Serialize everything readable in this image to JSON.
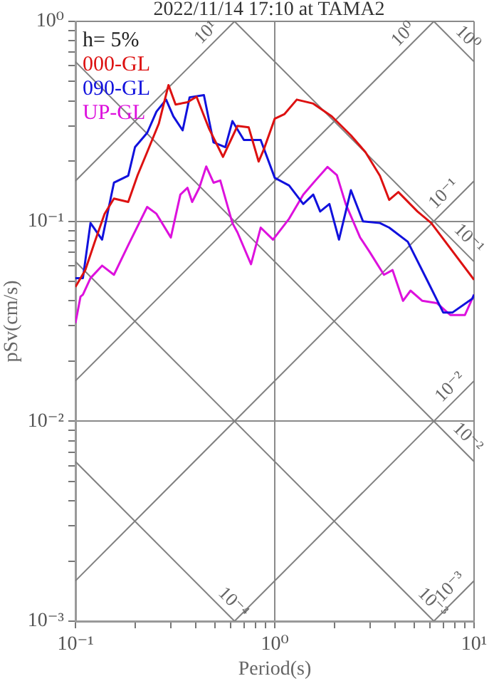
{
  "chart_data": {
    "type": "line",
    "title": "2022/11/14 17:10 at TAMA2",
    "xlabel": "Period(s)",
    "ylabel": "pSv(cm/s)",
    "legend_title": "h= 5%",
    "legend": "top left",
    "log": "xy",
    "grid": true,
    "xlim": [
      0.1,
      10
    ],
    "ylim": [
      0.001,
      1
    ],
    "xticks": [
      {
        "value": 0.1,
        "label": "10⁻¹"
      },
      {
        "value": 0.2,
        "label": null
      },
      {
        "value": 0.3,
        "label": null
      },
      {
        "value": 0.4,
        "label": null
      },
      {
        "value": 0.5,
        "label": null
      },
      {
        "value": 0.6,
        "label": null
      },
      {
        "value": 0.7,
        "label": null
      },
      {
        "value": 0.8,
        "label": null
      },
      {
        "value": 0.9,
        "label": null
      },
      {
        "value": 1,
        "label": "10⁰"
      },
      {
        "value": 2,
        "label": null
      },
      {
        "value": 3,
        "label": null
      },
      {
        "value": 4,
        "label": null
      },
      {
        "value": 5,
        "label": null
      },
      {
        "value": 6,
        "label": null
      },
      {
        "value": 7,
        "label": null
      },
      {
        "value": 8,
        "label": null
      },
      {
        "value": 9,
        "label": null
      },
      {
        "value": 10,
        "label": "10¹"
      }
    ],
    "yticks": [
      {
        "value": 0.001,
        "label": "10⁻³"
      },
      {
        "value": 0.002,
        "label": null
      },
      {
        "value": 0.003,
        "label": null
      },
      {
        "value": 0.004,
        "label": null
      },
      {
        "value": 0.005,
        "label": null
      },
      {
        "value": 0.006,
        "label": null
      },
      {
        "value": 0.007,
        "label": null
      },
      {
        "value": 0.008,
        "label": null
      },
      {
        "value": 0.009,
        "label": null
      },
      {
        "value": 0.01,
        "label": "10⁻²"
      },
      {
        "value": 0.02,
        "label": null
      },
      {
        "value": 0.03,
        "label": null
      },
      {
        "value": 0.04,
        "label": null
      },
      {
        "value": 0.05,
        "label": null
      },
      {
        "value": 0.06,
        "label": null
      },
      {
        "value": 0.07,
        "label": null
      },
      {
        "value": 0.08,
        "label": null
      },
      {
        "value": 0.09,
        "label": null
      },
      {
        "value": 0.1,
        "label": "10⁻¹"
      },
      {
        "value": 0.2,
        "label": null
      },
      {
        "value": 0.3,
        "label": null
      },
      {
        "value": 0.4,
        "label": null
      },
      {
        "value": 0.5,
        "label": null
      },
      {
        "value": 0.6,
        "label": null
      },
      {
        "value": 0.7,
        "label": null
      },
      {
        "value": 0.8,
        "label": null
      },
      {
        "value": 0.9,
        "label": null
      },
      {
        "value": 1,
        "label": "10⁰"
      }
    ],
    "series": [
      {
        "name": "000-GL",
        "type": "line",
        "color": "#dd1111",
        "x": [
          0.1,
          0.112,
          0.125,
          0.14,
          0.156,
          0.184,
          0.205,
          0.229,
          0.262,
          0.293,
          0.318,
          0.365,
          0.405,
          0.467,
          0.55,
          0.65,
          0.74,
          0.83,
          0.88,
          1.0,
          1.12,
          1.29,
          1.56,
          1.93,
          2.41,
          2.85,
          3.37,
          3.75,
          4.17,
          5.2,
          6.1,
          10
        ],
        "values": [
          0.047,
          0.057,
          0.079,
          0.109,
          0.13,
          0.125,
          0.17,
          0.222,
          0.308,
          0.48,
          0.384,
          0.394,
          0.42,
          0.292,
          0.21,
          0.3,
          0.295,
          0.199,
          0.228,
          0.326,
          0.344,
          0.406,
          0.388,
          0.335,
          0.269,
          0.222,
          0.169,
          0.128,
          0.14,
          0.112,
          0.098,
          0.051
        ]
      },
      {
        "name": "090-GL",
        "type": "line",
        "color": "#1111dd",
        "x": [
          0.1,
          0.109,
          0.119,
          0.136,
          0.156,
          0.184,
          0.199,
          0.229,
          0.255,
          0.285,
          0.31,
          0.345,
          0.374,
          0.441,
          0.493,
          0.565,
          0.613,
          0.7,
          0.85,
          1.0,
          1.18,
          1.39,
          1.56,
          1.69,
          1.88,
          2.1,
          2.41,
          2.77,
          3.37,
          3.75,
          4.65,
          5.8,
          7.0,
          7.8,
          9.8,
          10
        ],
        "values": [
          0.052,
          0.052,
          0.098,
          0.081,
          0.156,
          0.169,
          0.235,
          0.277,
          0.354,
          0.406,
          0.335,
          0.285,
          0.417,
          0.428,
          0.248,
          0.235,
          0.317,
          0.255,
          0.255,
          0.165,
          0.151,
          0.122,
          0.136,
          0.112,
          0.122,
          0.081,
          0.143,
          0.1,
          0.098,
          0.093,
          0.079,
          0.051,
          0.035,
          0.035,
          0.041,
          0.043
        ]
      },
      {
        "name": "UP-GL",
        "type": "line",
        "color": "#dd11dd",
        "x": [
          0.1,
          0.106,
          0.109,
          0.119,
          0.136,
          0.156,
          0.184,
          0.229,
          0.255,
          0.301,
          0.336,
          0.365,
          0.385,
          0.418,
          0.453,
          0.493,
          0.533,
          0.613,
          0.65,
          0.76,
          0.85,
          0.98,
          1.18,
          1.39,
          1.6,
          1.84,
          2.05,
          2.27,
          2.68,
          3.0,
          3.53,
          3.9,
          4.4,
          4.8,
          5.5,
          6.5,
          7.6,
          9.0,
          10
        ],
        "values": [
          0.031,
          0.042,
          0.043,
          0.052,
          0.06,
          0.054,
          0.076,
          0.118,
          0.109,
          0.083,
          0.136,
          0.147,
          0.125,
          0.147,
          0.188,
          0.156,
          0.16,
          0.098,
          0.088,
          0.061,
          0.093,
          0.081,
          0.103,
          0.136,
          0.16,
          0.187,
          0.17,
          0.122,
          0.083,
          0.07,
          0.054,
          0.057,
          0.04,
          0.045,
          0.04,
          0.039,
          0.034,
          0.034,
          0.043
        ]
      },
      {
        "type": "line",
        "color": "#808080",
        "x": [
          0.1,
          0.6283
        ],
        "values": [
          0.1592,
          1
        ]
      },
      {
        "type": "line",
        "color": "#808080",
        "x": [
          0.1,
          6.283
        ],
        "values": [
          0.01592,
          1
        ]
      },
      {
        "type": "line",
        "color": "#808080",
        "x": [
          0.1,
          10
        ],
        "values": [
          0.001592,
          0.1592
        ]
      },
      {
        "type": "line",
        "color": "#808080",
        "x": [
          0.6283,
          10
        ],
        "values": [
          0.001,
          0.01592
        ]
      },
      {
        "type": "line",
        "color": "#808080",
        "x": [
          6.283,
          10
        ],
        "values": [
          0.001,
          0.001592
        ]
      },
      {
        "type": "line",
        "color": "#808080",
        "x": [
          6.283,
          10
        ],
        "values": [
          1,
          0.6283
        ]
      },
      {
        "type": "line",
        "color": "#808080",
        "x": [
          0.6283,
          10
        ],
        "values": [
          1,
          0.06283
        ]
      },
      {
        "type": "line",
        "color": "#808080",
        "x": [
          0.1,
          10
        ],
        "values": [
          0.6283,
          0.006283
        ]
      },
      {
        "type": "line",
        "color": "#808080",
        "x": [
          0.1,
          6.283
        ],
        "values": [
          0.06283,
          0.001
        ]
      },
      {
        "type": "line",
        "color": "#808080",
        "x": [
          0.1,
          0.6283
        ],
        "values": [
          0.006283,
          0.001
        ]
      }
    ],
    "annotations": [
      {
        "text": "10¹",
        "x": 0.5,
        "y": 0.796
      },
      {
        "text": "10⁰",
        "x": 4.9,
        "y": 0.78
      },
      {
        "text": "10⁰",
        "x": 8.4,
        "y": 0.748
      },
      {
        "text": "10⁻¹",
        "x": 7.8,
        "y": 0.124
      },
      {
        "text": "10⁻¹",
        "x": 8.5,
        "y": 0.074
      },
      {
        "text": "10⁻²",
        "x": 8.4,
        "y": 0.0134
      },
      {
        "text": "10⁻²",
        "x": 8.4,
        "y": 0.0075
      },
      {
        "text": "10⁻³",
        "x": 5.6,
        "y": 0.00112
      },
      {
        "text": "10⁻³",
        "x": 8.4,
        "y": 0.00134
      },
      {
        "text": "10⁻⁴",
        "x": 0.56,
        "y": 0.00112
      }
    ]
  }
}
